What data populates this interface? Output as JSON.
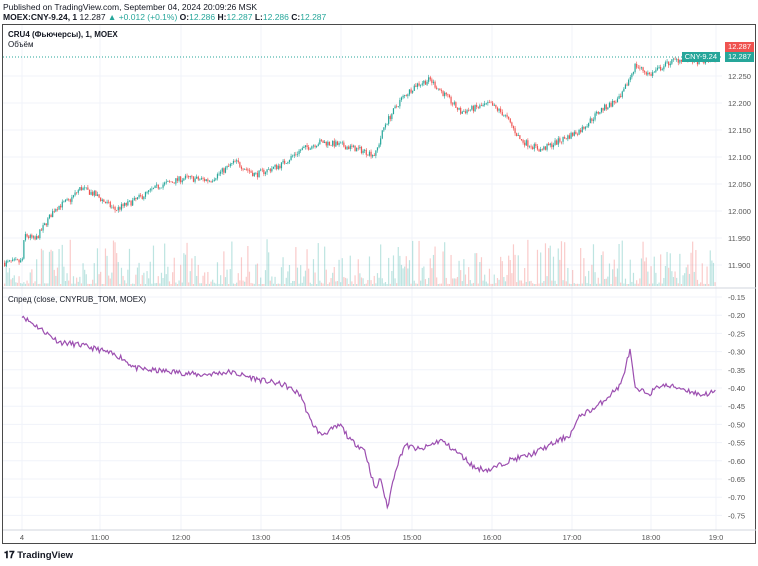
{
  "header": {
    "published": "Published on TradingView.com, September 04, 2024 20:09:26 MSK",
    "symbol": "MOEX:CNY-9.24, 1",
    "last": "12.287",
    "change": "▲ +0.012 (+0.1%)",
    "o_label": "O:",
    "o": "12.286",
    "h_label": "H:",
    "h": "12.287",
    "l_label": "L:",
    "l": "12.286",
    "c_label": "C:",
    "c": "12.287"
  },
  "main_pane": {
    "title": "CRU4 (Фьючерсы), 1, MOEX",
    "volume_label": "Объём",
    "price_ticks": [
      "12.250",
      "12.200",
      "12.150",
      "12.100",
      "12.050",
      "12.000",
      "11.950",
      "11.900"
    ],
    "price_tag_red": "12.287",
    "price_tag_green": "12.287",
    "symbol_tag": "CNY-9.24"
  },
  "spread_pane": {
    "title": "Спред (close, CNYRUB_TOM, MOEX)",
    "ticks": [
      "-0.15",
      "-0.20",
      "-0.25",
      "-0.30",
      "-0.35",
      "-0.40",
      "-0.45",
      "-0.50",
      "-0.55",
      "-0.60",
      "-0.65",
      "-0.70",
      "-0.75"
    ]
  },
  "time_axis": [
    "4",
    "11:00",
    "12:00",
    "13:00",
    "14:05",
    "15:00",
    "16:00",
    "17:00",
    "18:00",
    "19:0"
  ],
  "colors": {
    "up": "#26a69a",
    "down": "#ef5350",
    "spread": "#9c4fb0"
  },
  "chart_data": {
    "price": {
      "type": "candlestick",
      "note": "minutes since 10:00 vs close",
      "points": [
        [
          -13,
          11.904
        ],
        [
          0,
          11.906
        ],
        [
          2,
          11.956
        ],
        [
          10,
          11.946
        ],
        [
          17,
          11.974
        ],
        [
          25,
          12.006
        ],
        [
          36,
          12.02
        ],
        [
          44,
          12.043
        ],
        [
          55,
          12.03
        ],
        [
          70,
          12.002
        ],
        [
          85,
          12.02
        ],
        [
          104,
          12.048
        ],
        [
          122,
          12.061
        ],
        [
          141,
          12.057
        ],
        [
          160,
          12.091
        ],
        [
          175,
          12.067
        ],
        [
          194,
          12.085
        ],
        [
          209,
          12.113
        ],
        [
          224,
          12.128
        ],
        [
          239,
          12.122
        ],
        [
          254,
          12.113
        ],
        [
          265,
          12.104
        ],
        [
          272,
          12.159
        ],
        [
          284,
          12.206
        ],
        [
          295,
          12.233
        ],
        [
          306,
          12.243
        ],
        [
          317,
          12.215
        ],
        [
          329,
          12.183
        ],
        [
          351,
          12.198
        ],
        [
          362,
          12.178
        ],
        [
          374,
          12.131
        ],
        [
          389,
          12.113
        ],
        [
          404,
          12.131
        ],
        [
          419,
          12.15
        ],
        [
          434,
          12.187
        ],
        [
          449,
          12.209
        ],
        [
          460,
          12.27
        ],
        [
          471,
          12.252
        ],
        [
          486,
          12.276
        ],
        [
          497,
          12.283
        ],
        [
          509,
          12.276
        ],
        [
          520,
          12.283
        ]
      ]
    },
    "spread": {
      "type": "line",
      "points": [
        [
          0,
          -0.199
        ],
        [
          4,
          -0.213
        ],
        [
          13,
          -0.235
        ],
        [
          28,
          -0.274
        ],
        [
          44,
          -0.282
        ],
        [
          59,
          -0.296
        ],
        [
          74,
          -0.315
        ],
        [
          85,
          -0.345
        ],
        [
          96,
          -0.351
        ],
        [
          115,
          -0.356
        ],
        [
          134,
          -0.364
        ],
        [
          156,
          -0.356
        ],
        [
          179,
          -0.378
        ],
        [
          197,
          -0.392
        ],
        [
          209,
          -0.419
        ],
        [
          216,
          -0.488
        ],
        [
          224,
          -0.529
        ],
        [
          239,
          -0.502
        ],
        [
          246,
          -0.543
        ],
        [
          257,
          -0.57
        ],
        [
          265,
          -0.68
        ],
        [
          269,
          -0.647
        ],
        [
          274,
          -0.73
        ],
        [
          280,
          -0.625
        ],
        [
          287,
          -0.557
        ],
        [
          299,
          -0.57
        ],
        [
          314,
          -0.543
        ],
        [
          329,
          -0.584
        ],
        [
          340,
          -0.62
        ],
        [
          351,
          -0.625
        ],
        [
          366,
          -0.598
        ],
        [
          381,
          -0.584
        ],
        [
          396,
          -0.557
        ],
        [
          411,
          -0.529
        ],
        [
          419,
          -0.474
        ],
        [
          430,
          -0.455
        ],
        [
          441,
          -0.419
        ],
        [
          449,
          -0.392
        ],
        [
          456,
          -0.296
        ],
        [
          460,
          -0.405
        ],
        [
          471,
          -0.414
        ],
        [
          479,
          -0.392
        ],
        [
          494,
          -0.4
        ],
        [
          509,
          -0.419
        ],
        [
          520,
          -0.411
        ]
      ]
    }
  }
}
